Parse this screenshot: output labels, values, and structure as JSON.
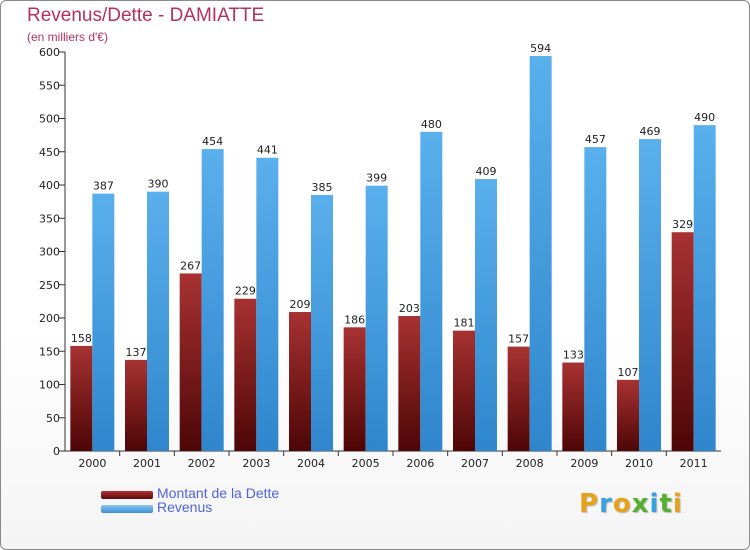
{
  "title": "Revenus/Dette - DAMIATTE",
  "subtitle": "(en milliers d'€)",
  "chart_data": {
    "type": "bar",
    "categories": [
      "2000",
      "2001",
      "2002",
      "2003",
      "2004",
      "2005",
      "2006",
      "2007",
      "2008",
      "2009",
      "2010",
      "2011"
    ],
    "series": [
      {
        "name": "Montant de la Dette",
        "values": [
          158,
          137,
          267,
          229,
          209,
          186,
          203,
          181,
          157,
          133,
          107,
          329
        ],
        "color": "#7a1a1a"
      },
      {
        "name": "Revenus",
        "values": [
          387,
          390,
          454,
          441,
          385,
          399,
          480,
          409,
          594,
          457,
          469,
          490
        ],
        "color": "#4aa3e6"
      }
    ],
    "ylim": [
      0,
      600
    ],
    "yticks": [
      0,
      50,
      100,
      150,
      200,
      250,
      300,
      350,
      400,
      450,
      500,
      550,
      600
    ],
    "grid": false,
    "legend": "bottom-left"
  },
  "logo": {
    "letters": [
      "P",
      "r",
      "o",
      "x",
      "i",
      "t",
      "i"
    ],
    "colors": [
      "#e8a21a",
      "#3aa0de",
      "#e8a21a",
      "#55b030",
      "#3aa0de",
      "#55b030",
      "#e8a21a"
    ]
  }
}
